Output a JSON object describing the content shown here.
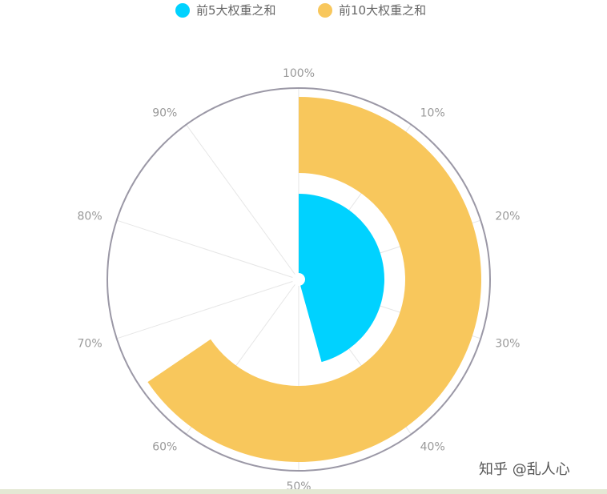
{
  "chart_data": {
    "type": "polar-bar",
    "angle_axis": {
      "tick_labels": [
        "100%",
        "10%",
        "20%",
        "30%",
        "40%",
        "50%",
        "60%",
        "70%",
        "80%",
        "90%"
      ],
      "range": [
        0,
        100
      ]
    },
    "series": [
      {
        "name": "前5大权重之和",
        "value": 45.7,
        "color": "#00d2ff"
      },
      {
        "name": "前10大权重之和",
        "value": 65.5,
        "color": "#f8c75c"
      }
    ],
    "legend_position": "top-center",
    "grid": true
  },
  "watermark": "知乎 @乱人心"
}
